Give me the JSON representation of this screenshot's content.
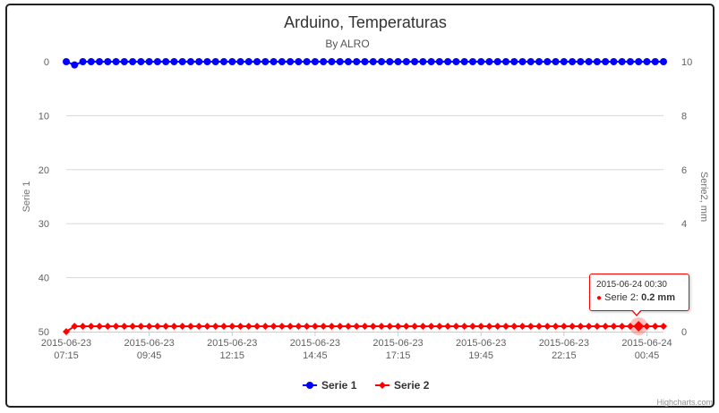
{
  "chart_data": {
    "type": "line",
    "title": "Arduino, Temperaturas",
    "subtitle": "By ALRO",
    "x_tick_labels": [
      [
        "2015-06-23",
        "07:15"
      ],
      [
        "2015-06-23",
        "09:45"
      ],
      [
        "2015-06-23",
        "12:15"
      ],
      [
        "2015-06-23",
        "14:45"
      ],
      [
        "2015-06-23",
        "17:15"
      ],
      [
        "2015-06-23",
        "19:45"
      ],
      [
        "2015-06-23",
        "22:15"
      ],
      [
        "2015-06-24",
        "00:45"
      ]
    ],
    "x_start": "2015-06-23 07:15",
    "x_end": "2015-06-24 01:15",
    "x_interval_minutes": 15,
    "y_left": {
      "title": "Serie 1",
      "min": 0,
      "max": 50,
      "reversed": true,
      "ticks": [
        0,
        10,
        20,
        30,
        40,
        50
      ]
    },
    "y_right": {
      "title": "Serie2, mm",
      "min": 0,
      "max": 10,
      "reversed": false,
      "ticks": [
        10,
        8,
        6,
        4,
        2,
        0
      ]
    },
    "grid": true,
    "legend_placement": "bottom-center",
    "series": [
      {
        "name": "Serie 1",
        "color": "#0000ff",
        "marker": "circle",
        "axis": "left",
        "values": [
          0,
          0.6,
          0,
          0,
          0,
          0,
          0,
          0,
          0,
          0,
          0,
          0,
          0,
          0,
          0,
          0,
          0,
          0,
          0,
          0,
          0,
          0,
          0,
          0,
          0,
          0,
          0,
          0,
          0,
          0,
          0,
          0,
          0,
          0,
          0,
          0,
          0,
          0,
          0,
          0,
          0,
          0,
          0,
          0,
          0,
          0,
          0,
          0,
          0,
          0,
          0,
          0,
          0,
          0,
          0,
          0,
          0,
          0,
          0,
          0,
          0,
          0,
          0,
          0,
          0,
          0,
          0,
          0,
          0,
          0,
          0,
          0,
          0
        ]
      },
      {
        "name": "Serie 2",
        "color": "#ff0000",
        "marker": "diamond",
        "axis": "right",
        "values": [
          0,
          0.2,
          0.2,
          0.2,
          0.2,
          0.2,
          0.2,
          0.2,
          0.2,
          0.2,
          0.2,
          0.2,
          0.2,
          0.2,
          0.2,
          0.2,
          0.2,
          0.2,
          0.2,
          0.2,
          0.2,
          0.2,
          0.2,
          0.2,
          0.2,
          0.2,
          0.2,
          0.2,
          0.2,
          0.2,
          0.2,
          0.2,
          0.2,
          0.2,
          0.2,
          0.2,
          0.2,
          0.2,
          0.2,
          0.2,
          0.2,
          0.2,
          0.2,
          0.2,
          0.2,
          0.2,
          0.2,
          0.2,
          0.2,
          0.2,
          0.2,
          0.2,
          0.2,
          0.2,
          0.2,
          0.2,
          0.2,
          0.2,
          0.2,
          0.2,
          0.2,
          0.2,
          0.2,
          0.2,
          0.2,
          0.2,
          0.2,
          0.2,
          0.2,
          0.2,
          0.2,
          0.2,
          0.2
        ]
      }
    ],
    "tooltip": {
      "header": "2015-06-24 00:30",
      "series_label": "Serie 2: ",
      "value": "0.2 mm",
      "x": "2015-06-24 00:30",
      "series": "Serie 2"
    },
    "credits": "Highcharts.com"
  }
}
